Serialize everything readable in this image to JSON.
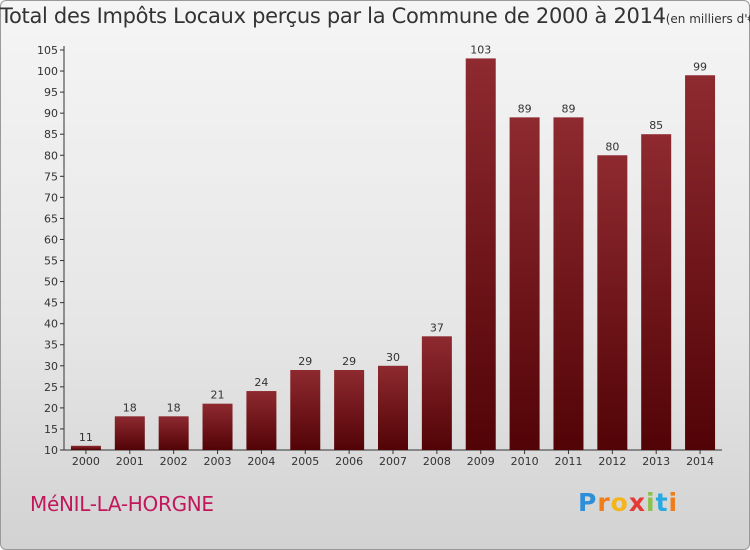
{
  "chart_data": {
    "type": "bar",
    "title": "Total des Impôts Locaux perçus par la Commune de 2000 à 2014",
    "subtitle": "(en milliers d'€)",
    "categories": [
      "2000",
      "2001",
      "2002",
      "2003",
      "2004",
      "2005",
      "2006",
      "2007",
      "2008",
      "2009",
      "2010",
      "2011",
      "2012",
      "2013",
      "2014"
    ],
    "values": [
      11,
      18,
      18,
      21,
      24,
      29,
      29,
      30,
      37,
      103,
      89,
      89,
      80,
      85,
      99
    ],
    "yticks": [
      10,
      15,
      20,
      25,
      30,
      35,
      40,
      45,
      50,
      55,
      60,
      65,
      70,
      75,
      80,
      85,
      90,
      95,
      100,
      105
    ],
    "ylim": [
      10,
      105
    ],
    "xlabel": "",
    "ylabel": "",
    "grid": false,
    "bar_color": "#7a1a1f"
  },
  "commune": "MéNIL-LA-HORGNE",
  "logo": {
    "letters": [
      "P",
      "r",
      "o",
      "x",
      "i",
      "t",
      "i"
    ],
    "colors": [
      "#2e8fd8",
      "#ef7d1a",
      "#f3b51b",
      "#e53935",
      "#8bc34a",
      "#29a9e0",
      "#ef7d1a"
    ]
  }
}
